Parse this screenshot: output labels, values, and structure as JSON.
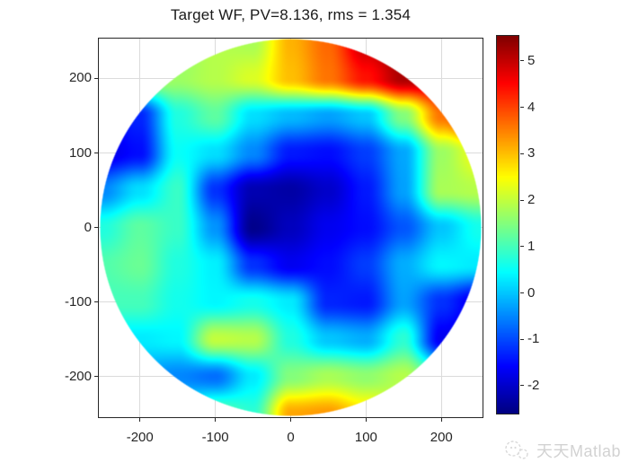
{
  "figure": {
    "watermark_text": "天天Matlab"
  },
  "chart_data": {
    "type": "heatmap",
    "title": "Target WF, PV=8.136, rms = 1.354",
    "stats": {
      "pv": 8.136,
      "rms": 1.354
    },
    "colormap": "jet",
    "grid_on": true,
    "clim": [
      -2.6,
      5.54
    ],
    "xlim": [
      -254.5,
      254.5
    ],
    "ylim": [
      -254.5,
      253.5
    ],
    "mask_radius": 253.5,
    "x_ticks": [
      -200,
      -100,
      0,
      100,
      200
    ],
    "y_ticks": [
      -200,
      -100,
      0,
      100,
      200
    ],
    "colorbar_ticks": [
      5,
      4,
      3,
      2,
      1,
      0,
      -1,
      -2
    ],
    "grid": {
      "x": [
        -250,
        -200,
        -150,
        -100,
        -50,
        0,
        50,
        100,
        150,
        200,
        250
      ],
      "y": [
        250,
        200,
        150,
        100,
        50,
        0,
        -50,
        -100,
        -150,
        -200,
        -250
      ],
      "values": [
        [
          1.8,
          1.8,
          1.6,
          1.9,
          1.8,
          3.1,
          3.7,
          5.0,
          5.5,
          5.2,
          4.6
        ],
        [
          1.6,
          1.8,
          1.7,
          1.9,
          2.2,
          3.0,
          3.6,
          4.4,
          5.2,
          5.1,
          4.6
        ],
        [
          -1.6,
          -1.3,
          0.7,
          1.2,
          0.2,
          -0.1,
          -0.3,
          0.0,
          1.5,
          3.6,
          4.6
        ],
        [
          -1.8,
          -1.5,
          0.5,
          0.2,
          -0.5,
          -1.4,
          -1.5,
          -1.1,
          -0.25,
          1.7,
          2.4
        ],
        [
          -0.5,
          0.2,
          0.9,
          -1.2,
          -2.2,
          -2.3,
          -2.0,
          -1.4,
          -0.3,
          1.8,
          1.9
        ],
        [
          0.7,
          1.2,
          0.9,
          -0.4,
          -2.5,
          -2.1,
          -1.7,
          -1.5,
          -0.9,
          0.0,
          0.6
        ],
        [
          1.1,
          1.3,
          0.7,
          0.35,
          -1.2,
          -1.7,
          -1.5,
          -1.1,
          -0.2,
          0.4,
          0.3
        ],
        [
          1.0,
          1.0,
          0.6,
          0.4,
          0.6,
          0.3,
          -1.3,
          -1.4,
          -0.3,
          -1.2,
          -1.8
        ],
        [
          0.3,
          0.3,
          0.4,
          2.0,
          1.9,
          0.7,
          0.0,
          -0.2,
          0.8,
          -1.7,
          -2.0
        ],
        [
          0.0,
          -0.3,
          -0.5,
          -0.7,
          0.3,
          1.5,
          1.8,
          1.6,
          1.9,
          1.0,
          0.0
        ],
        [
          0.0,
          0.0,
          0.5,
          1.2,
          0.8,
          3.2,
          3.3,
          2.7,
          2.0,
          1.0,
          0.5
        ]
      ]
    }
  }
}
